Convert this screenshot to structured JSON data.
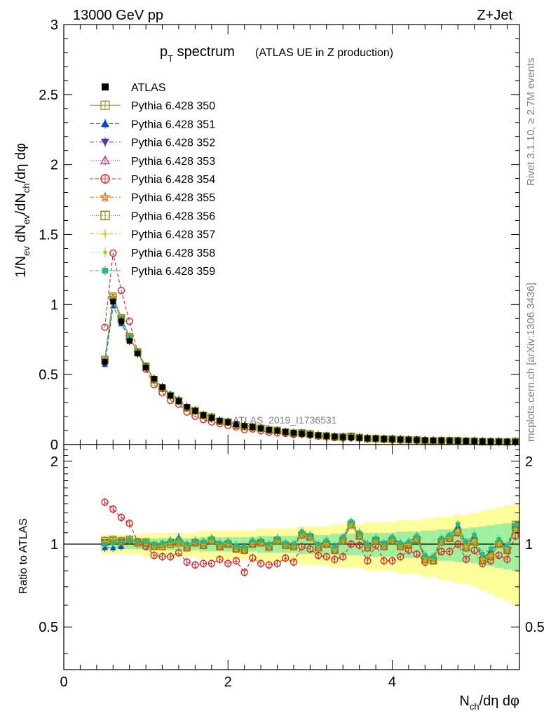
{
  "header": {
    "energy": "13000 GeV pp",
    "process": "Z+Jet"
  },
  "side_labels": {
    "rivet": "Rivet 3.1.10, ≥ 2.7M events",
    "mcplots": "mcplots.cern.ch [arXiv:1306.3436]"
  },
  "title": {
    "main_p": "p",
    "main_sub": "T",
    "main_rest": " spectrum",
    "note": "(ATLAS UE in Z production)"
  },
  "analysis_id": "ATLAS_2019_I1736531",
  "axes": {
    "ylabel_main": "1/N_ev dN_ev/dN_ch/dη dφ",
    "ylabel_ratio": "Ratio to ATLAS",
    "xlabel": "N_ch/dη dφ",
    "main_ticks": [
      "0",
      "0.5",
      "1",
      "1.5",
      "2",
      "2.5",
      "3"
    ],
    "ratio_ticks": [
      "0.5",
      "1",
      "2"
    ],
    "x_ticks": [
      "0",
      "2",
      "4"
    ]
  },
  "legend": [
    {
      "label": "ATLAS",
      "color": "#000000",
      "marker": "filled-square",
      "dash": "none"
    },
    {
      "label": "Pythia 6.428 350",
      "color": "#999933",
      "marker": "open-square",
      "dash": "solid"
    },
    {
      "label": "Pythia 6.428 351",
      "color": "#1144cc",
      "marker": "filled-triangle-up",
      "dash": "6,3"
    },
    {
      "label": "Pythia 6.428 352",
      "color": "#5533bb",
      "marker": "filled-triangle-down",
      "dash": "6,3,2,3"
    },
    {
      "label": "Pythia 6.428 353",
      "color": "#cc3399",
      "marker": "open-triangle-up",
      "dash": "1,2"
    },
    {
      "label": "Pythia 6.428 354",
      "color": "#dd2222",
      "marker": "open-circle",
      "dash": "5,3"
    },
    {
      "label": "Pythia 6.428 355",
      "color": "#ee7711",
      "marker": "open-star",
      "dash": "6,3,2,3"
    },
    {
      "label": "Pythia 6.428 356",
      "color": "#888800",
      "marker": "open-square",
      "dash": "1,2"
    },
    {
      "label": "Pythia 6.428 357",
      "color": "#ddbb00",
      "marker": "small-cross",
      "dash": "6,3,2,3"
    },
    {
      "label": "Pythia 6.428 358",
      "color": "#aacc22",
      "marker": "small-dot",
      "dash": "1,2"
    },
    {
      "label": "Pythia 6.428 359",
      "color": "#22bb88",
      "marker": "filled-square-small",
      "dash": "5,3"
    }
  ],
  "chart_data": {
    "type": "line",
    "title": "p_T spectrum (ATLAS UE in Z production)",
    "xlabel": "N_ch/dη dφ",
    "ylabel": "1/N_ev dN_ev/dN_ch/dη dφ",
    "xlim": [
      0,
      5.55
    ],
    "ylim": [
      0,
      3
    ],
    "ratio_ylim": [
      0.35,
      2.3
    ],
    "ratio_ylabel": "Ratio to ATLAS",
    "legend_position": "top-left",
    "x": [
      0.5,
      0.6,
      0.7,
      0.8,
      0.9,
      1.0,
      1.1,
      1.2,
      1.3,
      1.4,
      1.5,
      1.6,
      1.7,
      1.8,
      1.9,
      2.0,
      2.1,
      2.2,
      2.3,
      2.4,
      2.5,
      2.6,
      2.7,
      2.8,
      2.9,
      3.0,
      3.1,
      3.2,
      3.3,
      3.4,
      3.5,
      3.6,
      3.7,
      3.8,
      3.9,
      4.0,
      4.1,
      4.2,
      4.3,
      4.4,
      4.5,
      4.6,
      4.7,
      4.8,
      4.9,
      5.0,
      5.1,
      5.2,
      5.3,
      5.4,
      5.5
    ],
    "reference": {
      "name": "ATLAS",
      "values": [
        0.59,
        1.02,
        0.88,
        0.74,
        0.65,
        0.55,
        0.47,
        0.41,
        0.35,
        0.31,
        0.27,
        0.24,
        0.21,
        0.19,
        0.17,
        0.16,
        0.145,
        0.135,
        0.125,
        0.115,
        0.105,
        0.098,
        0.09,
        0.083,
        0.077,
        0.071,
        0.066,
        0.061,
        0.057,
        0.053,
        0.05,
        0.047,
        0.044,
        0.042,
        0.04,
        0.038,
        0.036,
        0.034,
        0.032,
        0.031,
        0.029,
        0.028,
        0.027,
        0.026,
        0.025,
        0.024,
        0.023,
        0.022,
        0.021,
        0.02,
        0.019
      ]
    },
    "ratio_band": [
      0.04,
      0.04,
      0.04,
      0.04,
      0.04,
      0.05,
      0.05,
      0.05,
      0.05,
      0.05,
      0.05,
      0.05,
      0.06,
      0.06,
      0.06,
      0.06,
      0.06,
      0.06,
      0.06,
      0.07,
      0.07,
      0.07,
      0.07,
      0.07,
      0.08,
      0.08,
      0.08,
      0.08,
      0.09,
      0.09,
      0.09,
      0.09,
      0.1,
      0.1,
      0.1,
      0.1,
      0.11,
      0.11,
      0.11,
      0.12,
      0.12,
      0.13,
      0.13,
      0.14,
      0.14,
      0.15,
      0.16,
      0.17,
      0.18,
      0.19,
      0.2
    ],
    "ratio_series": [
      {
        "name": "Pythia 6.428 350",
        "values": [
          1.03,
          1.04,
          1.03,
          1.04,
          1.02,
          1.02,
          0.99,
          0.98,
          1.0,
          1.01,
          0.97,
          1.01,
          0.99,
          1.03,
          0.98,
          1.0,
          0.96,
          0.95,
          1.0,
          1.01,
          0.98,
          1.03,
          0.99,
          0.98,
          1.08,
          1.06,
          0.97,
          1.0,
          0.95,
          1.03,
          1.18,
          1.07,
          0.97,
          1.03,
          0.98,
          1.03,
          0.98,
          0.99,
          1.04,
          0.88,
          0.87,
          1.02,
          1.05,
          1.1,
          0.97,
          1.02,
          0.87,
          0.9,
          1.0,
          0.95,
          1.18
        ]
      },
      {
        "name": "Pythia 6.428 351",
        "values": [
          0.97,
          0.97,
          0.98,
          1.03,
          1.02,
          1.01,
          0.98,
          1.0,
          1.03,
          1.06,
          0.99,
          1.03,
          1.02,
          1.05,
          1.0,
          1.02,
          0.98,
          0.97,
          1.02,
          1.02,
          0.99,
          1.04,
          1.0,
          0.99,
          1.1,
          1.07,
          0.99,
          1.02,
          0.98,
          1.05,
          1.2,
          1.09,
          0.99,
          1.04,
          1.0,
          1.05,
          1.0,
          1.02,
          1.06,
          0.9,
          0.89,
          1.04,
          1.07,
          1.16,
          1.0,
          1.06,
          0.89,
          0.94,
          1.02,
          0.97,
          1.16
        ]
      },
      {
        "name": "Pythia 6.428 352",
        "values": [
          1.02,
          1.02,
          1.02,
          1.03,
          1.0,
          1.0,
          0.98,
          0.99,
          1.01,
          1.03,
          0.98,
          1.02,
          1.0,
          1.04,
          0.99,
          1.01,
          0.97,
          0.96,
          1.01,
          1.01,
          0.98,
          1.03,
          0.99,
          0.98,
          1.09,
          1.06,
          0.98,
          1.01,
          0.96,
          1.04,
          1.19,
          1.08,
          0.98,
          1.03,
          0.99,
          1.04,
          0.99,
          1.0,
          1.05,
          0.89,
          0.88,
          1.03,
          1.06,
          1.13,
          0.98,
          1.04,
          0.88,
          0.92,
          1.01,
          0.96,
          1.14
        ]
      },
      {
        "name": "Pythia 6.428 353",
        "values": [
          1.01,
          1.03,
          1.02,
          1.03,
          1.01,
          1.0,
          0.98,
          0.99,
          1.01,
          1.02,
          0.97,
          1.01,
          0.99,
          1.03,
          0.98,
          1.0,
          0.96,
          0.95,
          1.0,
          1.01,
          0.97,
          1.03,
          0.99,
          0.98,
          1.08,
          1.06,
          0.97,
          1.0,
          0.95,
          1.03,
          1.17,
          1.07,
          0.97,
          1.03,
          0.98,
          1.03,
          0.98,
          0.99,
          1.04,
          0.88,
          0.87,
          1.02,
          1.05,
          1.1,
          0.97,
          1.02,
          0.87,
          0.9,
          1.0,
          0.95,
          1.12
        ]
      },
      {
        "name": "Pythia 6.428 354",
        "values": [
          1.42,
          1.34,
          1.25,
          1.19,
          1.02,
          0.98,
          0.91,
          0.9,
          0.9,
          0.93,
          0.86,
          0.84,
          0.85,
          0.85,
          0.88,
          0.85,
          0.87,
          0.79,
          0.89,
          0.85,
          0.84,
          0.85,
          0.89,
          0.86,
          0.98,
          0.96,
          0.91,
          0.9,
          0.88,
          0.9,
          1.0,
          0.99,
          0.87,
          0.99,
          0.87,
          0.87,
          0.9,
          0.95,
          0.92,
          0.86,
          0.87,
          0.94,
          0.94,
          1.0,
          0.88,
          0.95,
          0.85,
          0.87,
          0.91,
          0.88,
          1.07
        ]
      },
      {
        "name": "Pythia 6.428 355",
        "values": [
          1.02,
          1.03,
          1.02,
          1.04,
          1.01,
          1.01,
          0.98,
          0.99,
          1.01,
          1.02,
          0.98,
          1.02,
          1.0,
          1.04,
          0.99,
          1.01,
          0.97,
          0.96,
          1.01,
          1.01,
          0.98,
          1.03,
          0.99,
          0.98,
          1.09,
          1.06,
          0.98,
          1.01,
          0.96,
          1.04,
          1.18,
          1.08,
          0.98,
          1.03,
          0.99,
          1.04,
          0.99,
          1.0,
          1.05,
          0.89,
          0.88,
          1.03,
          1.06,
          1.12,
          0.98,
          1.03,
          0.88,
          0.91,
          1.01,
          0.96,
          1.13
        ]
      },
      {
        "name": "Pythia 6.428 356",
        "values": [
          1.03,
          1.03,
          1.02,
          1.04,
          1.01,
          1.01,
          0.98,
          0.98,
          1.0,
          1.01,
          0.97,
          1.01,
          0.99,
          1.03,
          0.98,
          1.0,
          0.96,
          0.95,
          1.0,
          1.01,
          0.98,
          1.03,
          0.99,
          0.98,
          1.08,
          1.06,
          0.97,
          1.0,
          0.95,
          1.03,
          1.18,
          1.07,
          0.97,
          1.03,
          0.98,
          1.03,
          0.98,
          0.99,
          1.04,
          0.88,
          0.87,
          1.02,
          1.05,
          1.1,
          0.97,
          1.02,
          0.87,
          0.9,
          1.0,
          0.95,
          1.15
        ]
      },
      {
        "name": "Pythia 6.428 357",
        "values": [
          1.02,
          1.02,
          1.02,
          1.03,
          1.01,
          1.01,
          0.98,
          0.99,
          1.01,
          1.02,
          0.98,
          1.02,
          1.0,
          1.04,
          0.99,
          1.01,
          0.97,
          0.96,
          1.01,
          1.01,
          0.98,
          1.03,
          0.99,
          0.98,
          1.09,
          1.06,
          0.98,
          1.01,
          0.96,
          1.04,
          1.19,
          1.08,
          0.98,
          1.03,
          0.99,
          1.04,
          0.99,
          1.0,
          1.05,
          0.89,
          0.88,
          1.03,
          1.06,
          1.12,
          0.98,
          1.03,
          0.88,
          0.91,
          1.01,
          0.96,
          1.13
        ]
      },
      {
        "name": "Pythia 6.428 358",
        "values": [
          1.02,
          1.03,
          1.02,
          1.03,
          1.01,
          1.0,
          0.98,
          0.99,
          1.01,
          1.02,
          0.98,
          1.02,
          1.0,
          1.03,
          0.99,
          1.0,
          0.97,
          0.96,
          1.01,
          1.01,
          0.98,
          1.03,
          0.99,
          0.98,
          1.09,
          1.06,
          0.98,
          1.01,
          0.96,
          1.04,
          1.18,
          1.08,
          0.98,
          1.03,
          0.99,
          1.04,
          0.99,
          1.0,
          1.05,
          0.89,
          0.88,
          1.03,
          1.06,
          1.12,
          0.98,
          1.03,
          0.88,
          0.91,
          1.01,
          0.96,
          1.13
        ]
      },
      {
        "name": "Pythia 6.428 359",
        "values": [
          1.0,
          1.01,
          1.02,
          1.04,
          1.02,
          1.02,
          1.0,
          1.01,
          1.03,
          1.04,
          1.0,
          1.03,
          1.02,
          1.05,
          1.01,
          1.02,
          0.99,
          0.98,
          1.03,
          1.03,
          1.0,
          1.05,
          1.01,
          1.0,
          1.11,
          1.08,
          1.0,
          1.03,
          0.98,
          1.06,
          1.21,
          1.1,
          1.0,
          1.05,
          1.01,
          1.06,
          1.01,
          1.02,
          1.07,
          0.91,
          0.9,
          1.05,
          1.08,
          1.18,
          1.02,
          1.08,
          0.92,
          0.96,
          1.04,
          0.99,
          1.17
        ]
      }
    ]
  }
}
